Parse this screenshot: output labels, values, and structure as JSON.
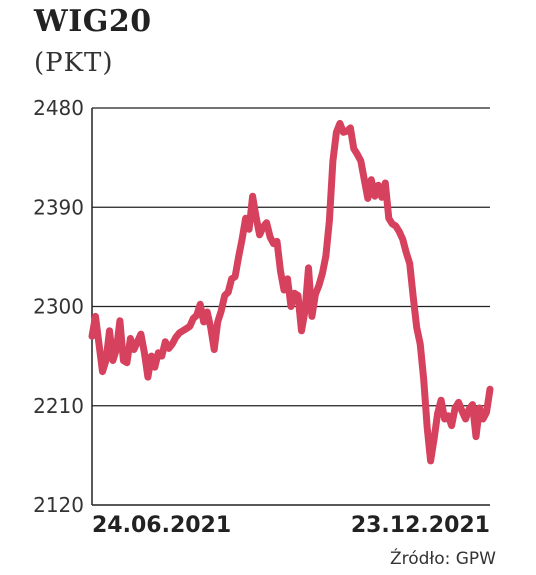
{
  "chart_data": {
    "type": "line",
    "title": "WIG20",
    "unit": "(PKT)",
    "source": "Źródło: GPW",
    "ylim": [
      2120,
      2480
    ],
    "yticks": [
      2480,
      2390,
      2300,
      2210,
      2120
    ],
    "x_start_label": "24.06.2021",
    "x_end_label": "23.12.2021",
    "line_color": "#d6415e",
    "series": [
      {
        "values": [
          2273,
          2291,
          2266,
          2241,
          2251,
          2278,
          2251,
          2261,
          2287,
          2251,
          2249,
          2271,
          2261,
          2268,
          2275,
          2258,
          2236,
          2255,
          2245,
          2258,
          2255,
          2268,
          2262,
          2266,
          2272,
          2276,
          2278,
          2280,
          2282,
          2289,
          2292,
          2302,
          2286,
          2295,
          2281,
          2261,
          2286,
          2296,
          2310,
          2313,
          2325,
          2327,
          2345,
          2361,
          2380,
          2370,
          2400,
          2381,
          2365,
          2372,
          2376,
          2363,
          2357,
          2359,
          2332,
          2315,
          2325,
          2300,
          2312,
          2310,
          2278,
          2296,
          2335,
          2291,
          2311,
          2319,
          2330,
          2346,
          2378,
          2432,
          2458,
          2466,
          2458,
          2459,
          2462,
          2443,
          2438,
          2432,
          2415,
          2398,
          2415,
          2400,
          2410,
          2399,
          2412,
          2380,
          2375,
          2373,
          2368,
          2361,
          2349,
          2339,
          2309,
          2281,
          2266,
          2234,
          2190,
          2160,
          2180,
          2203,
          2215,
          2198,
          2201,
          2192,
          2208,
          2213,
          2205,
          2198,
          2207,
          2211,
          2182,
          2208,
          2198,
          2204,
          2225
        ]
      }
    ]
  }
}
